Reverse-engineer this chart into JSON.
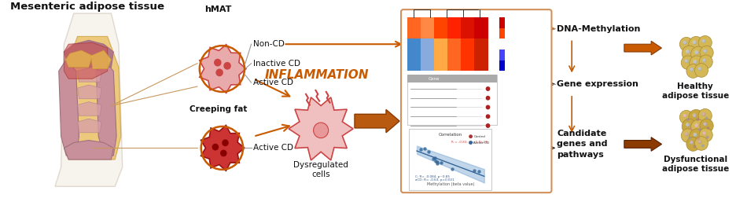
{
  "title": "Mesenteric adipose tissue",
  "hmat_label": "hMAT",
  "labels_top": [
    "Non-CD",
    "Inactive CD",
    "Active CD"
  ],
  "labels_bottom": [
    "Creeping fat",
    "Active CD"
  ],
  "inflammation_label": "INFLAMMATION",
  "dysregulated_label": "Dysregulated\ncells",
  "dna_meth_label": "DNA-Methylation",
  "gene_expr_label": "Gene expression",
  "candidate_label": "Candidate\ngenes and\npathways",
  "healthy_label": "Healthy\nadipose tissue",
  "dysfunctional_label": "Dysfunctional\nadipose tissue",
  "bg_color": "#ffffff",
  "arrow_color_orange": "#C85A00",
  "arrow_color_dark_orange": "#8B3A00",
  "cell_color_pink": "#e8a0a0",
  "cell_color_red": "#cc3333",
  "text_color": "#222222",
  "inflammation_color": "#C85A00",
  "box_border_color": "#D2905A",
  "correlation_label": "Correlation",
  "methyl_axis_label": "Methylation (beta value)",
  "r_value_text": "R = -0.83, p = 6.8e-06"
}
